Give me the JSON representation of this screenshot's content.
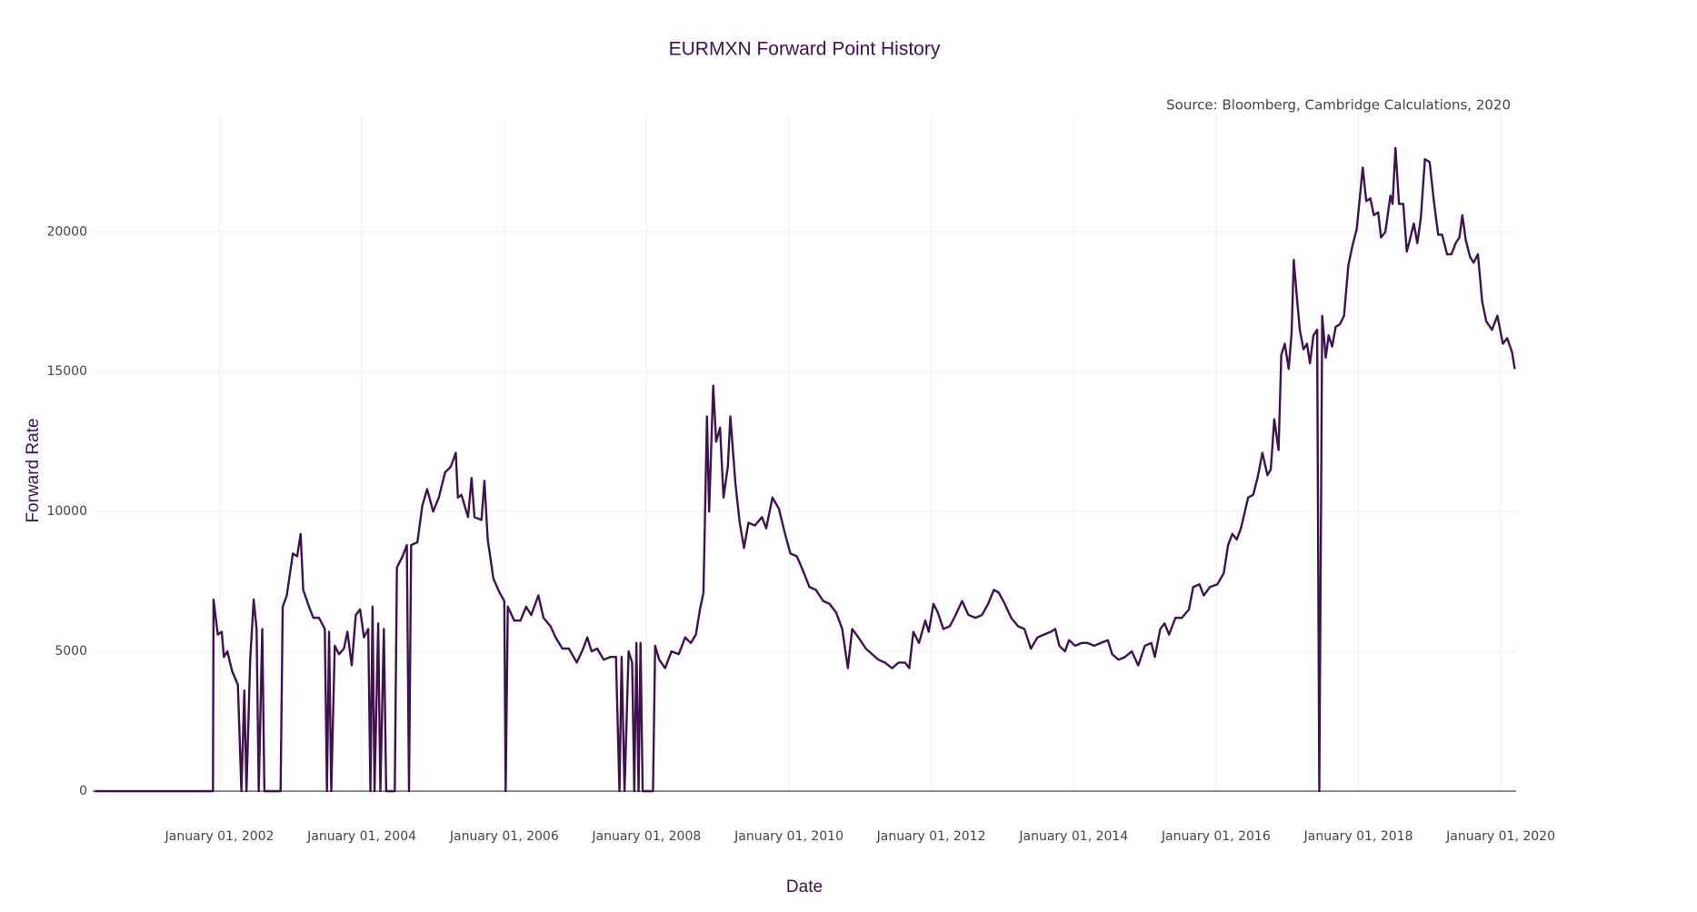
{
  "chart_data": {
    "type": "line",
    "title": "EURMXN Forward Point History",
    "annotation": "Source: Bloomberg, Cambridge Calculations, 2020",
    "x_label": "Date",
    "y_label": "Forward Rate",
    "color": "#40114f",
    "grid": true,
    "xlim": [
      "2000-03-21",
      "2020-03-20"
    ],
    "xticks": [
      {
        "value": "2002-01-01",
        "label": "January 01, 2002"
      },
      {
        "value": "2004-01-01",
        "label": "January 01, 2004"
      },
      {
        "value": "2006-01-01",
        "label": "January 01, 2006"
      },
      {
        "value": "2008-01-01",
        "label": "January 01, 2008"
      },
      {
        "value": "2010-01-01",
        "label": "January 01, 2010"
      },
      {
        "value": "2012-01-01",
        "label": "January 01, 2012"
      },
      {
        "value": "2014-01-01",
        "label": "January 01, 2014"
      },
      {
        "value": "2016-01-01",
        "label": "January 01, 2016"
      },
      {
        "value": "2018-01-01",
        "label": "January 01, 2018"
      },
      {
        "value": "2020-01-01",
        "label": "January 01, 2020"
      }
    ],
    "ylim": [
      0,
      24200
    ],
    "yticks": [
      0,
      5000,
      10000,
      15000,
      20000
    ],
    "x": [
      "2000-04-01",
      "2001-11-28",
      "2001-12-01",
      "2001-12-23",
      "2002-01-12",
      "2002-01-23",
      "2002-02-10",
      "2002-03-06",
      "2002-04-05",
      "2002-04-23",
      "2002-05-08",
      "2002-05-19",
      "2002-06-07",
      "2002-06-25",
      "2002-07-10",
      "2002-07-21",
      "2002-08-08",
      "2002-08-19",
      "2002-11-10",
      "2002-11-21",
      "2002-12-12",
      "2003-01-12",
      "2003-02-03",
      "2003-02-21",
      "2003-03-06",
      "2003-04-05",
      "2003-04-27",
      "2003-05-26",
      "2003-06-25",
      "2003-07-06",
      "2003-07-17",
      "2003-07-28",
      "2003-08-15",
      "2003-09-06",
      "2003-10-01",
      "2003-10-19",
      "2003-11-10",
      "2003-12-01",
      "2003-12-23",
      "2004-01-12",
      "2004-02-03",
      "2004-02-14",
      "2004-02-25",
      "2004-03-06",
      "2004-03-25",
      "2004-04-05",
      "2004-04-23",
      "2004-05-05",
      "2004-06-18",
      "2004-06-29",
      "2004-07-28",
      "2004-08-19",
      "2004-08-30",
      "2004-09-10",
      "2004-10-12",
      "2004-11-06",
      "2004-12-01",
      "2005-01-01",
      "2005-01-30",
      "2005-03-03",
      "2005-04-01",
      "2005-04-27",
      "2005-05-08",
      "2005-05-26",
      "2005-06-29",
      "2005-07-17",
      "2005-08-01",
      "2005-09-06",
      "2005-09-21",
      "2005-10-08",
      "2005-11-06",
      "2005-12-08",
      "2006-01-01",
      "2006-01-08",
      "2006-01-19",
      "2006-02-21",
      "2006-03-25",
      "2006-04-23",
      "2006-05-19",
      "2006-06-25",
      "2006-07-21",
      "2006-08-26",
      "2006-09-21",
      "2006-10-26",
      "2006-11-28",
      "2007-01-08",
      "2007-02-10",
      "2007-03-03",
      "2007-03-25",
      "2007-04-23",
      "2007-05-26",
      "2007-06-29",
      "2007-07-28",
      "2007-08-15",
      "2007-08-26",
      "2007-09-10",
      "2007-10-01",
      "2007-10-19",
      "2007-10-30",
      "2007-11-10",
      "2007-11-21",
      "2007-12-01",
      "2007-12-12",
      "2008-02-03",
      "2008-02-14",
      "2008-03-06",
      "2008-04-05",
      "2008-05-08",
      "2008-06-14",
      "2008-07-17",
      "2008-08-15",
      "2008-09-10",
      "2008-10-01",
      "2008-10-19",
      "2008-11-06",
      "2008-11-17",
      "2008-12-08",
      "2008-12-23",
      "2009-01-12",
      "2009-01-30",
      "2009-02-21",
      "2009-03-06",
      "2009-04-01",
      "2009-04-23",
      "2009-05-15",
      "2009-06-07",
      "2009-07-10",
      "2009-08-15",
      "2009-09-06",
      "2009-10-08",
      "2009-11-10",
      "2009-12-08",
      "2010-01-08",
      "2010-02-10",
      "2010-03-13",
      "2010-04-16",
      "2010-05-19",
      "2010-06-25",
      "2010-07-28",
      "2010-08-30",
      "2010-10-01",
      "2010-10-30",
      "2010-11-21",
      "2010-12-23",
      "2011-01-30",
      "2011-03-03",
      "2011-04-05",
      "2011-05-08",
      "2011-06-14",
      "2011-07-17",
      "2011-08-19",
      "2011-09-10",
      "2011-10-01",
      "2011-10-30",
      "2011-12-01",
      "2011-12-19",
      "2012-01-12",
      "2012-02-03",
      "2012-03-03",
      "2012-04-05",
      "2012-05-05",
      "2012-06-07",
      "2012-07-10",
      "2012-08-15",
      "2012-09-17",
      "2012-10-19",
      "2012-11-17",
      "2012-12-12",
      "2013-01-12",
      "2013-02-14",
      "2013-03-21",
      "2013-04-23",
      "2013-05-26",
      "2013-06-29",
      "2013-08-01",
      "2013-09-06",
      "2013-09-28",
      "2013-10-19",
      "2013-11-17",
      "2013-12-08",
      "2014-01-08",
      "2014-02-10",
      "2014-03-13",
      "2014-04-16",
      "2014-05-19",
      "2014-06-25",
      "2014-07-17",
      "2014-08-19",
      "2014-09-21",
      "2014-10-26",
      "2014-11-28",
      "2015-01-01",
      "2015-02-03",
      "2015-02-21",
      "2015-03-21",
      "2015-04-12",
      "2015-05-05",
      "2015-06-07",
      "2015-07-10",
      "2015-08-15",
      "2015-09-06",
      "2015-10-08",
      "2015-10-30",
      "2015-12-01",
      "2016-01-08",
      "2016-02-10",
      "2016-03-03",
      "2016-03-25",
      "2016-04-16",
      "2016-05-08",
      "2016-06-14",
      "2016-07-10",
      "2016-08-01",
      "2016-08-26",
      "2016-09-21",
      "2016-10-08",
      "2016-10-26",
      "2016-11-17",
      "2016-12-01",
      "2016-12-19",
      "2017-01-08",
      "2017-01-23",
      "2017-02-03",
      "2017-02-21",
      "2017-03-06",
      "2017-03-25",
      "2017-04-12",
      "2017-04-27",
      "2017-05-15",
      "2017-06-03",
      "2017-06-14",
      "2017-06-29",
      "2017-07-17",
      "2017-08-01",
      "2017-08-19",
      "2017-09-06",
      "2017-09-28",
      "2017-10-19",
      "2017-11-10",
      "2017-12-01",
      "2017-12-23",
      "2018-01-23",
      "2018-02-10",
      "2018-03-03",
      "2018-03-21",
      "2018-04-12",
      "2018-04-27",
      "2018-05-19",
      "2018-06-14",
      "2018-06-25",
      "2018-07-10",
      "2018-07-28",
      "2018-08-19",
      "2018-09-06",
      "2018-09-21",
      "2018-10-12",
      "2018-10-30",
      "2018-11-17",
      "2018-12-08",
      "2019-01-01",
      "2019-01-23",
      "2019-02-14",
      "2019-03-06",
      "2019-04-01",
      "2019-04-23",
      "2019-05-15",
      "2019-06-03",
      "2019-06-18",
      "2019-07-06",
      "2019-07-28",
      "2019-08-15",
      "2019-09-06",
      "2019-09-28",
      "2019-10-19",
      "2019-11-17",
      "2019-12-15",
      "2020-01-12",
      "2020-02-03",
      "2020-02-28",
      "2020-03-13"
    ],
    "values": [
      0,
      0,
      6850,
      5600,
      5700,
      4800,
      5000,
      4300,
      3800,
      0,
      3600,
      0,
      4700,
      6850,
      5800,
      0,
      5800,
      0,
      0,
      6600,
      7000,
      8500,
      8400,
      9200,
      7200,
      6600,
      6200,
      6200,
      5800,
      0,
      5700,
      0,
      5200,
      4900,
      5100,
      5700,
      4500,
      6300,
      6500,
      5500,
      5800,
      0,
      6600,
      0,
      6000,
      0,
      5800,
      0,
      0,
      8000,
      8400,
      8800,
      0,
      8800,
      8900,
      10200,
      10800,
      10000,
      10500,
      11400,
      11600,
      12100,
      10500,
      10600,
      9800,
      11200,
      9800,
      9700,
      11100,
      9000,
      7600,
      7100,
      6800,
      0,
      6600,
      6100,
      6100,
      6600,
      6300,
      7000,
      6200,
      5900,
      5500,
      5100,
      5100,
      4600,
      5100,
      5500,
      5000,
      5100,
      4700,
      4800,
      4800,
      0,
      4800,
      0,
      5000,
      4600,
      0,
      5300,
      0,
      5300,
      0,
      0,
      5200,
      4700,
      4400,
      5000,
      4900,
      5500,
      5300,
      5600,
      6500,
      7100,
      13400,
      10000,
      14500,
      12500,
      13000,
      10500,
      11600,
      13400,
      11000,
      9600,
      8700,
      9600,
      9500,
      9800,
      9400,
      10500,
      10100,
      9300,
      8500,
      8400,
      7900,
      7300,
      7200,
      6800,
      6700,
      6400,
      5800,
      4400,
      5800,
      5500,
      5100,
      4900,
      4700,
      4600,
      4400,
      4600,
      4600,
      4400,
      5700,
      5300,
      6100,
      5700,
      6700,
      6400,
      5800,
      5900,
      6300,
      6800,
      6300,
      6200,
      6300,
      6700,
      7200,
      7100,
      6700,
      6200,
      5900,
      5800,
      5100,
      5500,
      5600,
      5700,
      5800,
      5200,
      5000,
      5400,
      5200,
      5300,
      5300,
      5200,
      5300,
      5400,
      4900,
      4700,
      4800,
      5000,
      4500,
      5200,
      5300,
      4800,
      5800,
      6000,
      5600,
      6200,
      6200,
      6500,
      7300,
      7400,
      7000,
      7300,
      7400,
      7800,
      8800,
      9200,
      9000,
      9400,
      10500,
      10600,
      11200,
      12100,
      11300,
      11500,
      13300,
      12200,
      15600,
      16000,
      15100,
      16400,
      19000,
      17500,
      16500,
      15800,
      16000,
      15300,
      16300,
      16500,
      0,
      17000,
      15500,
      16300,
      15900,
      16600,
      16700,
      17000,
      18800,
      19500,
      20100,
      22300,
      21100,
      21200,
      20600,
      20700,
      19800,
      20000,
      21300,
      21000,
      23000,
      21000,
      21000,
      19300,
      19700,
      20300,
      19600,
      20500,
      22600,
      22500,
      21100,
      19900,
      19900,
      19200,
      19200,
      19600,
      19800,
      20600,
      19700,
      19100,
      18900,
      19200,
      17500,
      16800,
      16500,
      17000,
      16000,
      16200,
      15700,
      15100
    ]
  }
}
